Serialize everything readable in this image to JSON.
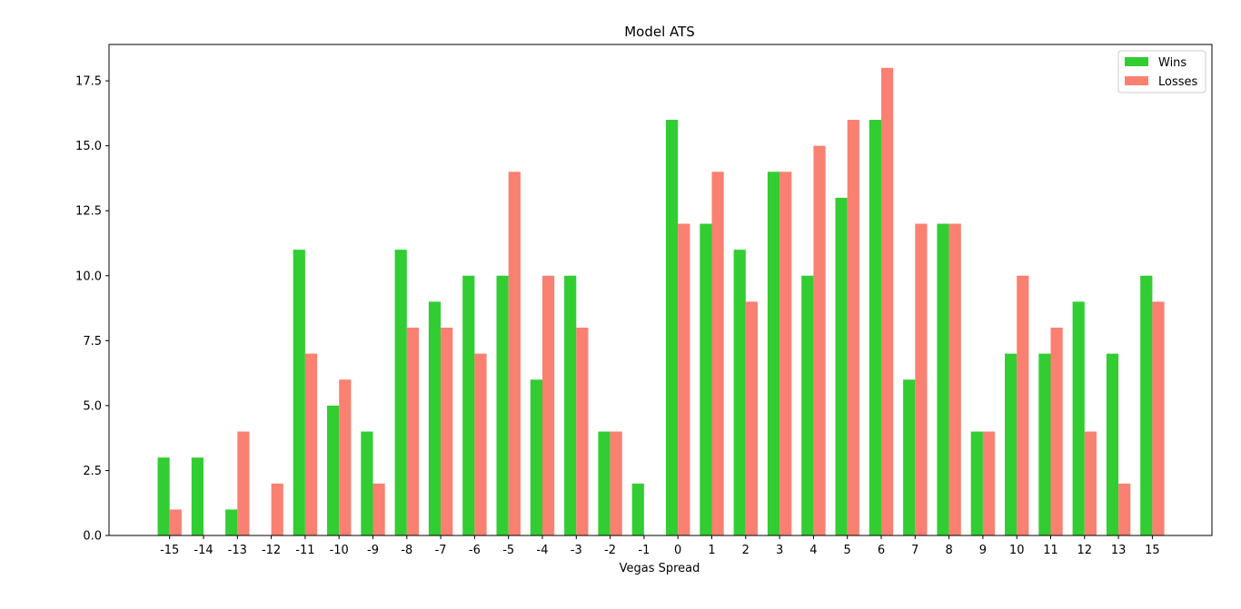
{
  "chart_data": {
    "type": "bar",
    "title": "Model ATS",
    "xlabel": "Vegas Spread",
    "ylabel": "",
    "categories": [
      "-15",
      "-14",
      "-13",
      "-12",
      "-11",
      "-10",
      "-9",
      "-8",
      "-7",
      "-6",
      "-5",
      "-4",
      "-3",
      "-2",
      "-1",
      "0",
      "1",
      "2",
      "3",
      "4",
      "5",
      "6",
      "7",
      "8",
      "9",
      "10",
      "11",
      "12",
      "13",
      "15"
    ],
    "series": [
      {
        "name": "Wins",
        "color": "#32cd32",
        "values": [
          3,
          3,
          1,
          0,
          11,
          5,
          4,
          11,
          9,
          10,
          10,
          6,
          10,
          4,
          2,
          16,
          12,
          11,
          14,
          10,
          13,
          16,
          6,
          12,
          4,
          7,
          7,
          9,
          7,
          10
        ]
      },
      {
        "name": "Losses",
        "color": "#fa8072",
        "values": [
          1,
          0,
          4,
          2,
          7,
          6,
          2,
          8,
          8,
          7,
          14,
          10,
          8,
          4,
          0,
          12,
          14,
          9,
          14,
          15,
          16,
          18,
          12,
          12,
          4,
          10,
          8,
          4,
          2,
          9
        ]
      }
    ],
    "ylim": [
      0,
      18.9
    ],
    "yticks": [
      "0.0",
      "2.5",
      "5.0",
      "7.5",
      "10.0",
      "12.5",
      "15.0",
      "17.5"
    ],
    "legend": "top-right",
    "grid": false
  }
}
